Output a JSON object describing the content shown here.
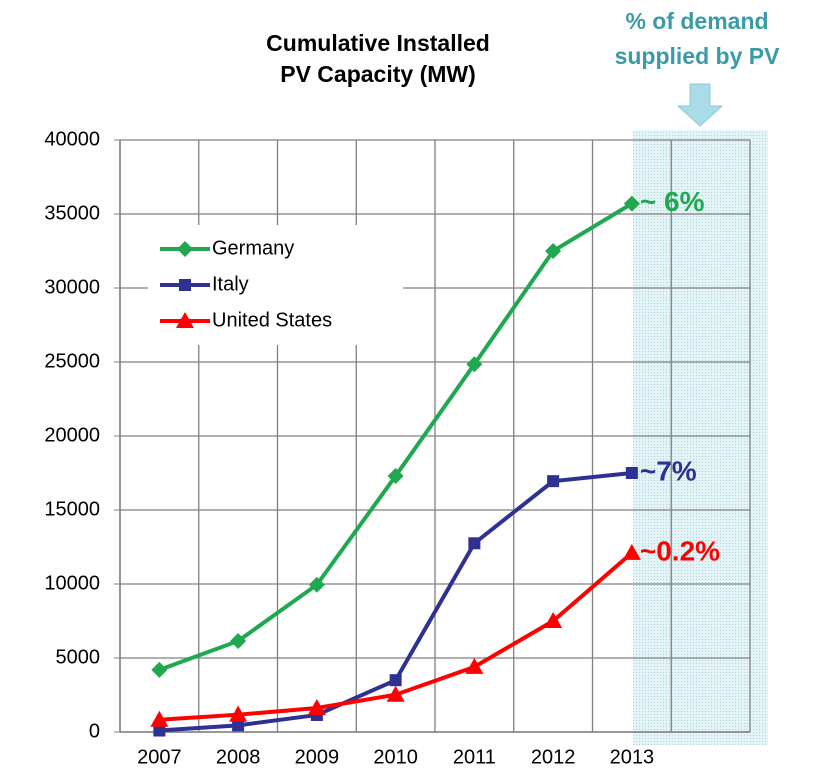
{
  "chart_data": {
    "type": "line",
    "title": [
      "Cumulative Installed",
      "PV Capacity (MW)"
    ],
    "note": [
      "% of  demand",
      "supplied by PV"
    ],
    "categories": [
      "2007",
      "2008",
      "2009",
      "2010",
      "2011",
      "2012",
      "2013",
      null
    ],
    "series": [
      {
        "name": "Germany",
        "color": "#1fa84f",
        "marker": "diamond",
        "values": [
          4200,
          6150,
          9950,
          17300,
          24850,
          32500,
          35700,
          null
        ]
      },
      {
        "name": "Italy",
        "color": "#2e3192",
        "marker": "square",
        "values": [
          100,
          450,
          1150,
          3500,
          12750,
          16950,
          17500,
          null
        ]
      },
      {
        "name": "United States",
        "color": "#ff0000",
        "marker": "triangle",
        "values": [
          830,
          1170,
          1620,
          2520,
          4400,
          7500,
          12100,
          null
        ]
      }
    ],
    "annotations": [
      "~ 6%",
      "~7%",
      "~0.2%"
    ],
    "ylim": [
      0,
      40000
    ],
    "yticks": [
      0,
      5000,
      10000,
      15000,
      20000,
      25000,
      30000,
      35000,
      40000
    ],
    "grid": true,
    "legend": "upper left"
  }
}
